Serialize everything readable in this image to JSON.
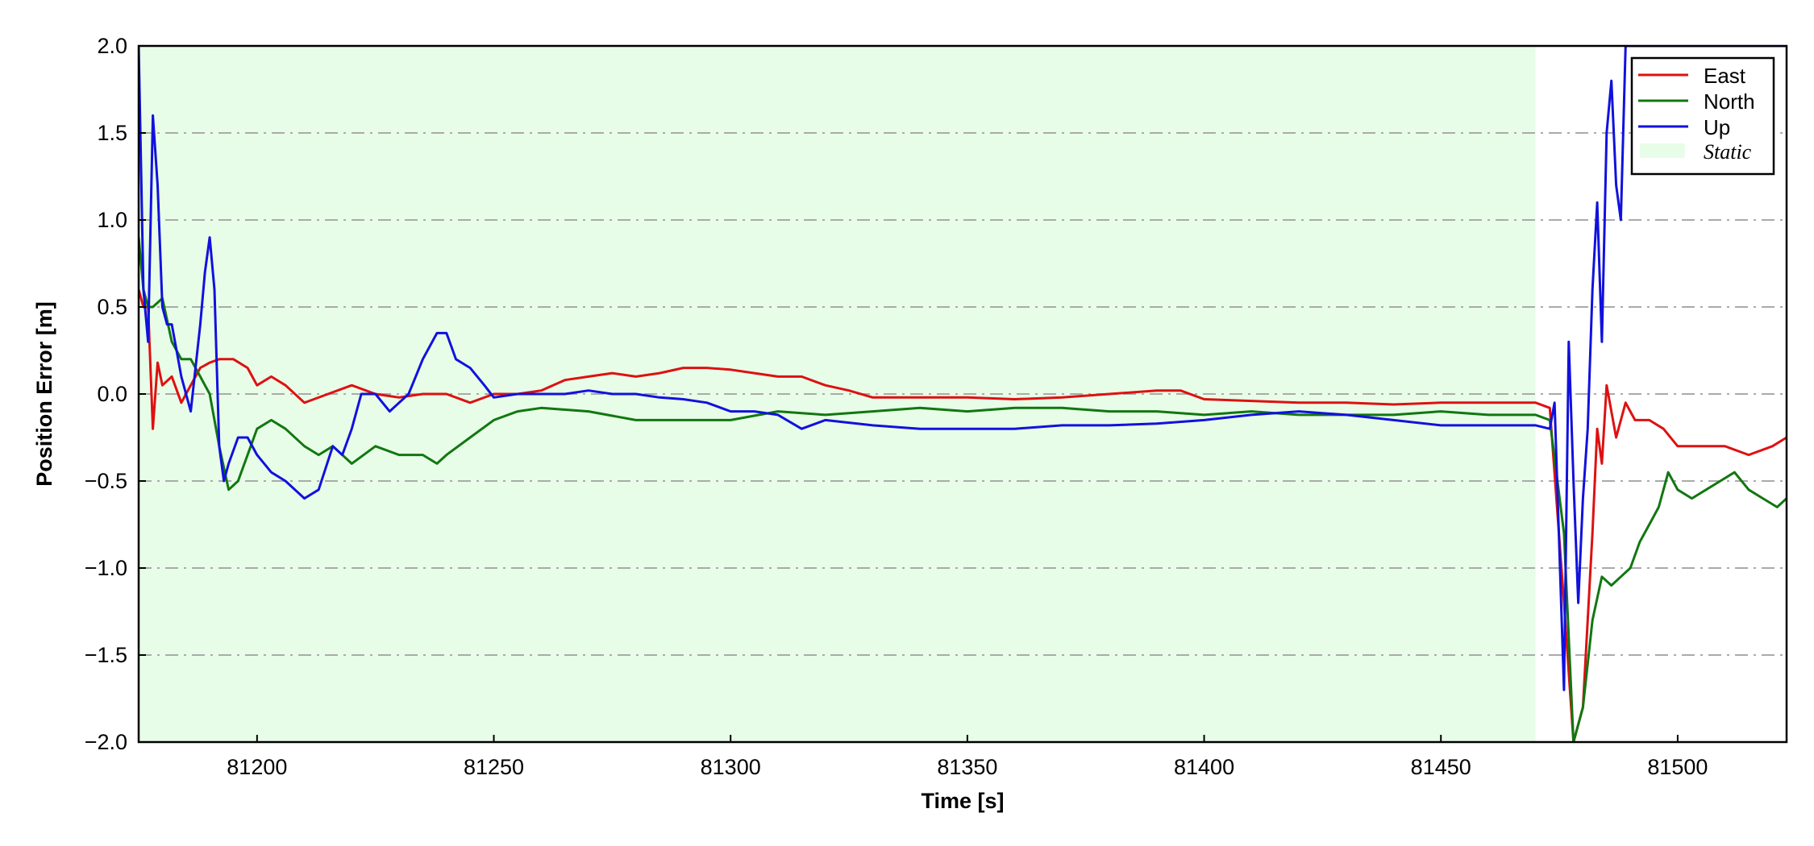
{
  "chart_data": {
    "type": "line",
    "xlabel": "Time [s]",
    "ylabel": "Position Error [m]",
    "xlim": [
      81175,
      81523
    ],
    "ylim": [
      -2.0,
      2.0
    ],
    "x_ticks": [
      81200,
      81250,
      81300,
      81350,
      81400,
      81450,
      81500
    ],
    "y_ticks": [
      -2.0,
      -1.5,
      -1.0,
      -0.5,
      0.0,
      0.5,
      1.0,
      1.5,
      2.0
    ],
    "y_tick_labels": [
      "−2.0",
      "−1.5",
      "−1.0",
      "−0.5",
      "0.0",
      "0.5",
      "1.0",
      "1.5",
      "2.0"
    ],
    "grid": "horizontal dash-dot",
    "legend_position": "top-right",
    "static_region": {
      "name": "Static",
      "x_start": 81175,
      "x_end": 81470,
      "color": "#e8fde8"
    },
    "series": [
      {
        "name": "East",
        "color": "#dd1111",
        "x": [
          81175,
          81176,
          81177,
          81178,
          81179,
          81180,
          81182,
          81184,
          81186,
          81188,
          81190,
          81192,
          81195,
          81198,
          81200,
          81203,
          81206,
          81210,
          81215,
          81220,
          81225,
          81230,
          81235,
          81240,
          81245,
          81250,
          81255,
          81260,
          81265,
          81270,
          81275,
          81280,
          81285,
          81290,
          81295,
          81300,
          81305,
          81310,
          81315,
          81320,
          81325,
          81330,
          81340,
          81350,
          81360,
          81370,
          81380,
          81390,
          81395,
          81400,
          81410,
          81420,
          81430,
          81440,
          81450,
          81460,
          81470,
          81473,
          81476,
          81478,
          81480,
          81482,
          81483,
          81484,
          81485,
          81486,
          81487,
          81489,
          81491,
          81494,
          81497,
          81500,
          81505,
          81510,
          81515,
          81520,
          81523
        ],
        "y": [
          0.6,
          0.5,
          0.5,
          -0.2,
          0.18,
          0.05,
          0.1,
          -0.05,
          0.05,
          0.15,
          0.18,
          0.2,
          0.2,
          0.15,
          0.05,
          0.1,
          0.05,
          -0.05,
          0.0,
          0.05,
          0.0,
          -0.02,
          0.0,
          0.0,
          -0.05,
          0.0,
          0.0,
          0.02,
          0.08,
          0.1,
          0.12,
          0.1,
          0.12,
          0.15,
          0.15,
          0.14,
          0.12,
          0.1,
          0.1,
          0.05,
          0.02,
          -0.02,
          -0.02,
          -0.02,
          -0.03,
          -0.02,
          0.0,
          0.02,
          0.02,
          -0.03,
          -0.04,
          -0.05,
          -0.05,
          -0.06,
          -0.05,
          -0.05,
          -0.05,
          -0.08,
          -1.2,
          -2.0,
          -1.8,
          -0.8,
          -0.2,
          -0.4,
          0.05,
          -0.1,
          -0.25,
          -0.05,
          -0.15,
          -0.15,
          -0.2,
          -0.3,
          -0.3,
          -0.3,
          -0.35,
          -0.3,
          -0.25
        ]
      },
      {
        "name": "North",
        "color": "#117711",
        "x": [
          81175,
          81176,
          81177,
          81178,
          81180,
          81182,
          81184,
          81186,
          81188,
          81190,
          81192,
          81194,
          81196,
          81198,
          81200,
          81203,
          81206,
          81210,
          81213,
          81216,
          81220,
          81225,
          81230,
          81235,
          81238,
          81240,
          81245,
          81250,
          81255,
          81260,
          81270,
          81280,
          81290,
          81300,
          81310,
          81320,
          81330,
          81340,
          81350,
          81360,
          81370,
          81380,
          81390,
          81400,
          81410,
          81420,
          81430,
          81440,
          81450,
          81460,
          81470,
          81473,
          81476,
          81478,
          81480,
          81482,
          81484,
          81486,
          81488,
          81490,
          81492,
          81494,
          81496,
          81498,
          81500,
          81503,
          81506,
          81509,
          81512,
          81515,
          81518,
          81521,
          81523
        ],
        "y": [
          0.9,
          0.6,
          0.5,
          0.5,
          0.55,
          0.3,
          0.2,
          0.2,
          0.1,
          0.0,
          -0.3,
          -0.55,
          -0.5,
          -0.35,
          -0.2,
          -0.15,
          -0.2,
          -0.3,
          -0.35,
          -0.3,
          -0.4,
          -0.3,
          -0.35,
          -0.35,
          -0.4,
          -0.35,
          -0.25,
          -0.15,
          -0.1,
          -0.08,
          -0.1,
          -0.15,
          -0.15,
          -0.15,
          -0.1,
          -0.12,
          -0.1,
          -0.08,
          -0.1,
          -0.08,
          -0.08,
          -0.1,
          -0.1,
          -0.12,
          -0.1,
          -0.12,
          -0.12,
          -0.12,
          -0.1,
          -0.12,
          -0.12,
          -0.15,
          -0.8,
          -2.0,
          -1.8,
          -1.3,
          -1.05,
          -1.1,
          -1.05,
          -1.0,
          -0.85,
          -0.75,
          -0.65,
          -0.45,
          -0.55,
          -0.6,
          -0.55,
          -0.5,
          -0.45,
          -0.55,
          -0.6,
          -0.65,
          -0.6
        ]
      },
      {
        "name": "Up",
        "color": "#1111dd",
        "x": [
          81175,
          81176,
          81177,
          81178,
          81179,
          81180,
          81181,
          81182,
          81184,
          81186,
          81188,
          81189,
          81190,
          81191,
          81192,
          81193,
          81194,
          81196,
          81198,
          81200,
          81203,
          81206,
          81210,
          81213,
          81216,
          81218,
          81220,
          81222,
          81225,
          81228,
          81232,
          81235,
          81238,
          81240,
          81242,
          81245,
          81248,
          81250,
          81255,
          81260,
          81265,
          81270,
          81275,
          81280,
          81285,
          81290,
          81295,
          81300,
          81305,
          81310,
          81315,
          81320,
          81330,
          81340,
          81350,
          81360,
          81370,
          81380,
          81390,
          81400,
          81410,
          81420,
          81430,
          81440,
          81450,
          81460,
          81470,
          81473,
          81474,
          81476,
          81477,
          81478,
          81479,
          81480,
          81481,
          81482,
          81483,
          81484,
          81485,
          81486,
          81487,
          81488,
          81489,
          81490,
          81492,
          81494,
          81497,
          81500,
          81505,
          81510,
          81515,
          81520,
          81523
        ],
        "y": [
          2.0,
          0.6,
          0.3,
          1.6,
          1.2,
          0.5,
          0.4,
          0.4,
          0.1,
          -0.1,
          0.4,
          0.7,
          0.9,
          0.6,
          -0.3,
          -0.5,
          -0.4,
          -0.25,
          -0.25,
          -0.35,
          -0.45,
          -0.5,
          -0.6,
          -0.55,
          -0.3,
          -0.35,
          -0.2,
          0.0,
          0.0,
          -0.1,
          0.0,
          0.2,
          0.35,
          0.35,
          0.2,
          0.15,
          0.05,
          -0.02,
          0.0,
          0.0,
          0.0,
          0.02,
          0.0,
          0.0,
          -0.02,
          -0.03,
          -0.05,
          -0.1,
          -0.1,
          -0.12,
          -0.2,
          -0.15,
          -0.18,
          -0.2,
          -0.2,
          -0.2,
          -0.18,
          -0.18,
          -0.17,
          -0.15,
          -0.12,
          -0.1,
          -0.12,
          -0.15,
          -0.18,
          -0.18,
          -0.18,
          -0.2,
          -0.05,
          -1.7,
          0.3,
          -0.5,
          -1.2,
          -0.6,
          -0.2,
          0.6,
          1.1,
          0.3,
          1.5,
          1.8,
          1.2,
          1.0,
          2.0,
          2.0,
          2.0,
          2.0,
          2.0,
          2.0,
          2.0,
          2.0,
          2.0,
          2.0,
          2.0
        ]
      }
    ]
  }
}
